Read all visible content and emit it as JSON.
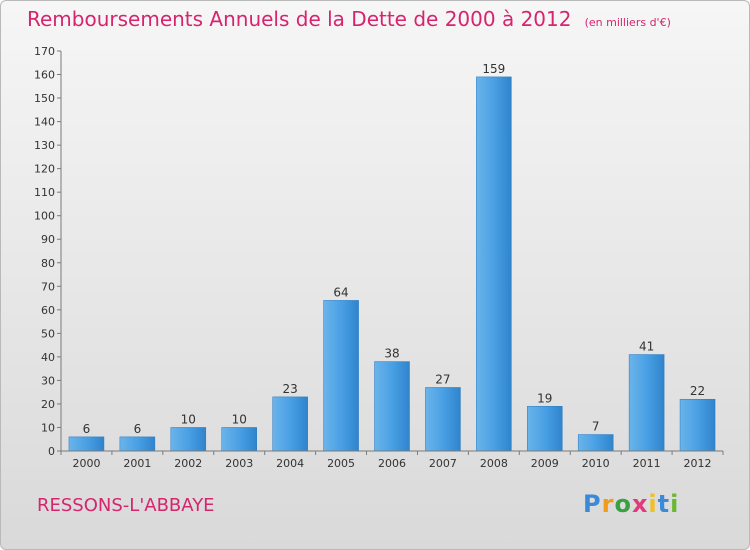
{
  "title": "Remboursements Annuels de la Dette de 2000 à 2012",
  "unit_note": "(en milliers d'€)",
  "commune": "RESSONS-L'ABBAYE",
  "logo": {
    "text": "Proxiti",
    "letters": [
      {
        "ch": "P",
        "color": "#3a8ad8"
      },
      {
        "ch": "r",
        "color": "#f29a1c"
      },
      {
        "ch": "o",
        "color": "#3aa040"
      },
      {
        "ch": "x",
        "color": "#e03a7a"
      },
      {
        "ch": "i",
        "color": "#f0c020"
      },
      {
        "ch": "t",
        "color": "#3a8ad8"
      },
      {
        "ch": "i",
        "color": "#6ab830"
      }
    ]
  },
  "colors": {
    "title": "#d6246e",
    "bar": "#3a92dc"
  },
  "chart_data": {
    "type": "bar",
    "categories": [
      "2000",
      "2001",
      "2002",
      "2003",
      "2004",
      "2005",
      "2006",
      "2007",
      "2008",
      "2009",
      "2010",
      "2011",
      "2012"
    ],
    "values": [
      6,
      6,
      10,
      10,
      23,
      64,
      38,
      27,
      159,
      19,
      7,
      41,
      22
    ],
    "ylim": [
      0,
      170
    ],
    "yticks": [
      0,
      10,
      20,
      30,
      40,
      50,
      60,
      70,
      80,
      90,
      100,
      110,
      120,
      130,
      140,
      150,
      160,
      170
    ],
    "grid": false,
    "legend": "none",
    "data_labels": true
  }
}
